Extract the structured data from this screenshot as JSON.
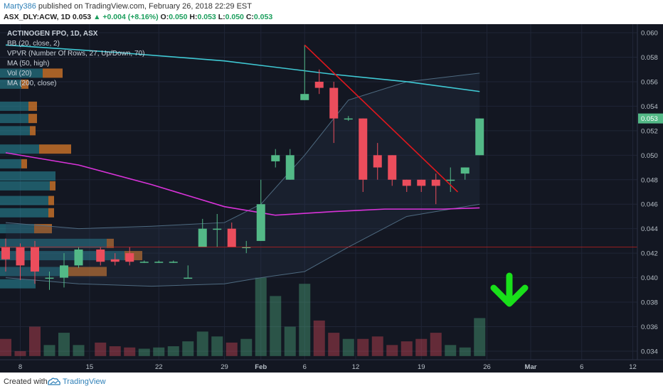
{
  "header": {
    "author": "Marty386",
    "published_text": "published on TradingView.com, February 26, 2018 22:29 EST",
    "symbol": "ASX_DLY:ACW, 1D",
    "last": "0.053",
    "change": "▲ +0.004 (+8.16%)",
    "o_label": "O:",
    "o_value": "0.050",
    "h_label": "H:",
    "h_value": "0.053",
    "l_label": "L:",
    "l_value": "0.050",
    "c_label": "C:",
    "c_value": "0.053"
  },
  "footer": {
    "created_with": "Created with",
    "brand": "TradingView"
  },
  "colors": {
    "background": "#131722",
    "up": "#53b987",
    "down": "#eb4d5c",
    "ma50": "#d933d9",
    "ma200": "#3fc9d4",
    "trendline": "#e0171d",
    "arrow": "#19e01a",
    "resistance": "#d02020",
    "vpvr_up": "#2a8fa0",
    "vpvr_down": "#e8812a"
  },
  "chart_data": {
    "type": "candlestick",
    "title": "ACTINOGEN FPO, 1D, ASX",
    "indicators": [
      "BB (20, close, 2)",
      "VPVR (Number Of Rows, 27, Up/Down, 70)",
      "MA (50, high)",
      "Vol (20)",
      "MA (200, close)"
    ],
    "y_ticks": [
      "0.060",
      "0.058",
      "0.056",
      "0.054",
      "0.052",
      "0.050",
      "0.048",
      "0.046",
      "0.044",
      "0.042",
      "0.040",
      "0.038",
      "0.036",
      "0.034"
    ],
    "ylim": [
      0.0333,
      0.0607
    ],
    "last_price_label": "0.053",
    "last_price": 0.053,
    "x_tick_labels": [
      "8",
      "15",
      "22",
      "29",
      "Feb",
      "6",
      "12",
      "19",
      "26",
      "Mar",
      "6",
      "12"
    ],
    "candles": [
      {
        "d": 0,
        "o": 0.0425,
        "h": 0.0432,
        "l": 0.0405,
        "c": 0.0415
      },
      {
        "d": 2,
        "o": 0.0425,
        "h": 0.0428,
        "l": 0.0398,
        "c": 0.041
      },
      {
        "d": 4,
        "o": 0.0425,
        "h": 0.043,
        "l": 0.0395,
        "c": 0.0405
      },
      {
        "d": 6,
        "o": 0.04,
        "h": 0.0405,
        "l": 0.039,
        "c": 0.04
      },
      {
        "d": 8,
        "o": 0.04,
        "h": 0.042,
        "l": 0.0392,
        "c": 0.041
      },
      {
        "d": 10,
        "o": 0.041,
        "h": 0.0425,
        "l": 0.0408,
        "c": 0.0423
      },
      {
        "d": 13,
        "o": 0.0423,
        "h": 0.0425,
        "l": 0.041,
        "c": 0.0413
      },
      {
        "d": 15,
        "o": 0.0415,
        "h": 0.042,
        "l": 0.041,
        "c": 0.0413
      },
      {
        "d": 17,
        "o": 0.042,
        "h": 0.0425,
        "l": 0.041,
        "c": 0.0413
      },
      {
        "d": 19,
        "o": 0.0413,
        "h": 0.0414,
        "l": 0.0412,
        "c": 0.0413
      },
      {
        "d": 21,
        "o": 0.0413,
        "h": 0.0414,
        "l": 0.0412,
        "c": 0.0413
      },
      {
        "d": 23,
        "o": 0.0413,
        "h": 0.0414,
        "l": 0.0412,
        "c": 0.0413
      },
      {
        "d": 25,
        "o": 0.04,
        "h": 0.041,
        "l": 0.04,
        "c": 0.04
      },
      {
        "d": 27,
        "o": 0.0425,
        "h": 0.0448,
        "l": 0.0425,
        "c": 0.044
      },
      {
        "d": 29,
        "o": 0.044,
        "h": 0.0452,
        "l": 0.0425,
        "c": 0.044
      },
      {
        "d": 31,
        "o": 0.044,
        "h": 0.0445,
        "l": 0.0425,
        "c": 0.0425
      },
      {
        "d": 33,
        "o": 0.0425,
        "h": 0.043,
        "l": 0.042,
        "c": 0.0425
      },
      {
        "d": 35,
        "o": 0.043,
        "h": 0.048,
        "l": 0.043,
        "c": 0.046
      },
      {
        "d": 37,
        "o": 0.0495,
        "h": 0.0505,
        "l": 0.049,
        "c": 0.05
      },
      {
        "d": 39,
        "o": 0.048,
        "h": 0.0505,
        "l": 0.048,
        "c": 0.05
      },
      {
        "d": 41,
        "o": 0.0545,
        "h": 0.059,
        "l": 0.0545,
        "c": 0.055
      },
      {
        "d": 43,
        "o": 0.056,
        "h": 0.057,
        "l": 0.055,
        "c": 0.0555
      },
      {
        "d": 45,
        "o": 0.0555,
        "h": 0.056,
        "l": 0.051,
        "c": 0.053
      },
      {
        "d": 47,
        "o": 0.053,
        "h": 0.0532,
        "l": 0.0528,
        "c": 0.053
      },
      {
        "d": 49,
        "o": 0.053,
        "h": 0.053,
        "l": 0.047,
        "c": 0.048
      },
      {
        "d": 51,
        "o": 0.05,
        "h": 0.051,
        "l": 0.048,
        "c": 0.049
      },
      {
        "d": 53,
        "o": 0.05,
        "h": 0.05,
        "l": 0.0475,
        "c": 0.048
      },
      {
        "d": 55,
        "o": 0.048,
        "h": 0.048,
        "l": 0.047,
        "c": 0.0475
      },
      {
        "d": 57,
        "o": 0.048,
        "h": 0.048,
        "l": 0.047,
        "c": 0.0475
      },
      {
        "d": 59,
        "o": 0.048,
        "h": 0.0485,
        "l": 0.046,
        "c": 0.0475
      },
      {
        "d": 61,
        "o": 0.048,
        "h": 0.049,
        "l": 0.047,
        "c": 0.048
      },
      {
        "d": 63,
        "o": 0.0485,
        "h": 0.049,
        "l": 0.048,
        "c": 0.049
      },
      {
        "d": 65,
        "o": 0.05,
        "h": 0.053,
        "l": 0.05,
        "c": 0.053
      }
    ],
    "volume": [
      0.035,
      0.034,
      0.036,
      0.0345,
      0.0355,
      0.0345,
      0.0347,
      0.0344,
      0.0343,
      0.0342,
      0.0343,
      0.0344,
      0.0348,
      0.0356,
      0.0352,
      0.0347,
      0.035,
      0.04,
      0.0385,
      0.036,
      0.0395,
      0.0365,
      0.0355,
      0.035,
      0.035,
      0.0352,
      0.0345,
      0.0348,
      0.035,
      0.0355,
      0.0345,
      0.0343,
      0.0367
    ],
    "ma200": [
      [
        0,
        0.059
      ],
      [
        15,
        0.0584
      ],
      [
        30,
        0.0577
      ],
      [
        45,
        0.0566
      ],
      [
        55,
        0.056
      ],
      [
        65,
        0.0552
      ]
    ],
    "ma50": [
      [
        0,
        0.0502
      ],
      [
        10,
        0.0492
      ],
      [
        20,
        0.0476
      ],
      [
        30,
        0.0458
      ],
      [
        37,
        0.0451
      ],
      [
        45,
        0.0454
      ],
      [
        52,
        0.0456
      ],
      [
        60,
        0.0456
      ],
      [
        65,
        0.0457
      ]
    ],
    "trendline": [
      [
        41,
        0.059
      ],
      [
        62,
        0.047
      ]
    ],
    "resistance_level": 0.0425
  }
}
